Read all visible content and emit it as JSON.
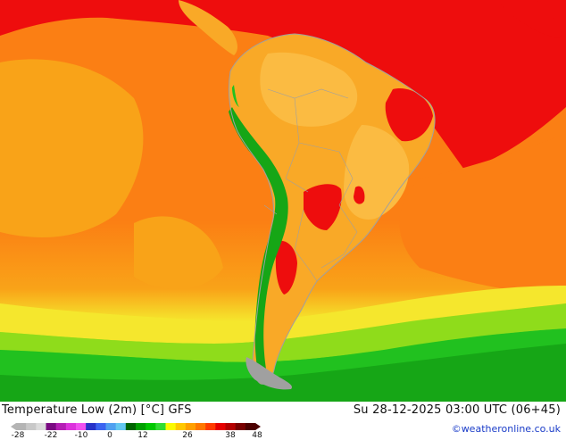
{
  "footer": {
    "title": "Temperature Low (2m) [°C] GFS",
    "datetime": "Su 28-12-2025 03:00 UTC (06+45)",
    "credit": "©weatheronline.co.uk"
  },
  "legend": {
    "ticks": [
      "-28",
      "-22",
      "-10",
      "0",
      "12",
      "26",
      "38",
      "48"
    ],
    "colors": [
      "#b4b4b4",
      "#c8c8c8",
      "#dcdcdc",
      "#7a0a82",
      "#b41eb4",
      "#dc32dc",
      "#f050f0",
      "#2832c8",
      "#3c64f0",
      "#50a0f0",
      "#64c8f0",
      "#006400",
      "#00a000",
      "#00c800",
      "#32dc32",
      "#fafa00",
      "#ffc800",
      "#ffa000",
      "#ff7800",
      "#ff3c00",
      "#e60000",
      "#b40000",
      "#780000",
      "#4b0000"
    ]
  },
  "map": {
    "colors": {
      "ocean_orange": "#fb7f14",
      "ocean_light": "#f9a318",
      "tropic_red": "#ee0d0d",
      "land_amber": "#f9a927",
      "land_light": "#fbbb42",
      "andes_green": "#16a616",
      "cold_green": "#21c11f",
      "lime": "#8fdc1b",
      "yellow": "#f5e72d",
      "coast_gray": "#a0a0a0"
    }
  }
}
